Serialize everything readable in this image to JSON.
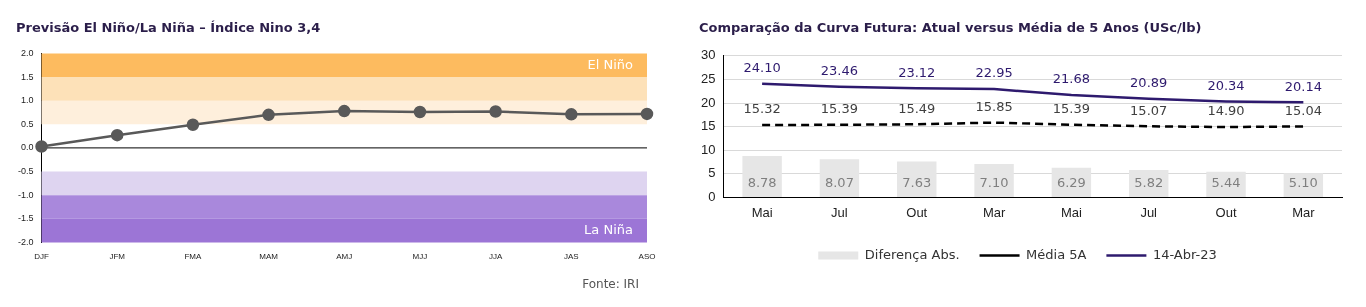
{
  "chart_data": [
    {
      "type": "line",
      "title": "Previsão El Niño/La Niña – Índice Nino 3,4",
      "categories": [
        "DJF",
        "JFM",
        "FMA",
        "MAM",
        "AMJ",
        "MJJ",
        "JJA",
        "JAS",
        "ASO"
      ],
      "series": [
        {
          "color": "#595959",
          "values": [
            0.03,
            0.27,
            0.49,
            0.7,
            0.78,
            0.76,
            0.77,
            0.71,
            0.72
          ]
        }
      ],
      "ylim": [
        -2,
        2
      ],
      "yticks": [
        {
          "value": -2,
          "label": "-2.0"
        },
        {
          "value": -1.5,
          "label": "-1.5"
        },
        {
          "value": -1,
          "label": "-1.0"
        },
        {
          "value": -0.5,
          "label": "-0.5"
        },
        {
          "value": 0,
          "label": "0.0"
        },
        {
          "value": 0.5,
          "label": "0.5"
        },
        {
          "value": 1,
          "label": "1.0"
        },
        {
          "value": 1.5,
          "label": "1.5"
        },
        {
          "value": 2,
          "label": "2.0"
        }
      ],
      "bands": [
        {
          "axis": "y",
          "from": 0.5,
          "to": 1,
          "color": "#feefdc"
        },
        {
          "axis": "y",
          "from": 1,
          "to": 1.5,
          "color": "#fde1b8"
        },
        {
          "axis": "y",
          "from": 1.5,
          "to": 2,
          "color": "#fdbb5f",
          "label": "El Niño"
        },
        {
          "axis": "y",
          "from": -1,
          "to": -0.5,
          "color": "#ded4f0"
        },
        {
          "axis": "y",
          "from": -1.5,
          "to": -1,
          "color": "#a988dc"
        },
        {
          "axis": "y",
          "from": -2,
          "to": -1.5,
          "color": "#9c75d6",
          "label": "La Niña"
        }
      ],
      "ref_lines": [
        {
          "axis": "y",
          "value": 0,
          "color": "#000000"
        }
      ],
      "marker": "circle",
      "grid": false,
      "legend": false,
      "annotations": [
        "Fonte: IRI"
      ]
    },
    {
      "type": "bar",
      "title": "Comparação da Curva Futura: Atual versus Média de 5 Anos (USc/lb)",
      "categories": [
        "Mai",
        "Jul",
        "Out",
        "Mar",
        "Mai",
        "Jul",
        "Out",
        "Mar"
      ],
      "series": [
        {
          "name": "Diferença Abs.",
          "type": "bar",
          "color": "#e6e6e6",
          "values": [
            8.78,
            8.07,
            7.63,
            7.1,
            6.29,
            5.82,
            5.44,
            5.1
          ],
          "value_labels": [
            "8.78",
            "8.07",
            "7.63",
            "7.10",
            "6.29",
            "5.82",
            "5.44",
            "5.10"
          ]
        },
        {
          "name": "Média 5A",
          "type": "line",
          "color": "#000000",
          "line_style": "dashed",
          "values": [
            15.32,
            15.39,
            15.49,
            15.85,
            15.39,
            15.07,
            14.9,
            15.04
          ],
          "value_labels": [
            "15.32",
            "15.39",
            "15.49",
            "15.85",
            "15.39",
            "15.07",
            "14.90",
            "15.04"
          ]
        },
        {
          "name": "14-Abr-23",
          "type": "line",
          "color": "#2e1a6e",
          "line_style": "solid",
          "values": [
            24.1,
            23.46,
            23.12,
            22.95,
            21.68,
            20.89,
            20.34,
            20.14
          ],
          "value_labels": [
            "24.10",
            "23.46",
            "23.12",
            "22.95",
            "21.68",
            "20.89",
            "20.34",
            "20.14"
          ]
        }
      ],
      "ylim": [
        0,
        30
      ],
      "yticks": [
        0,
        5,
        10,
        15,
        20,
        25,
        30
      ],
      "grid": "y",
      "legend": "bottom",
      "marker": "none"
    }
  ]
}
